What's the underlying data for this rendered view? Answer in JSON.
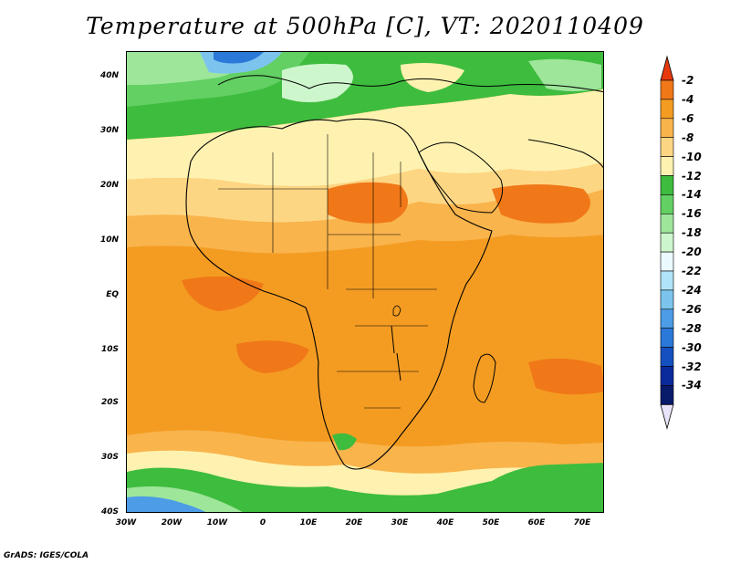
{
  "title": "Temperature at 500hPa [C], VT: 2020110409",
  "credit": "GrADS: IGES/COLA",
  "y_axis_labels": [
    "40N",
    "30N",
    "20N",
    "10N",
    "EQ",
    "10S",
    "20S",
    "30S",
    "40S"
  ],
  "x_axis_labels": [
    "30W",
    "20W",
    "10W",
    "0",
    "10E",
    "20E",
    "30E",
    "40E",
    "50E",
    "60E",
    "70E"
  ],
  "colorbar": {
    "labels": [
      "-2",
      "-4",
      "-6",
      "-8",
      "-10",
      "-12",
      "-14",
      "-16",
      "-18",
      "-20",
      "-22",
      "-24",
      "-26",
      "-28",
      "-30",
      "-32",
      "-34"
    ],
    "colors": [
      "#e8390c",
      "#f07818",
      "#f49c22",
      "#f9b44c",
      "#fdd684",
      "#fff2b0",
      "#3ebc3e",
      "#62d062",
      "#9ee69a",
      "#cdf6cc",
      "#ebfafe",
      "#b0e4f8",
      "#7cc4ee",
      "#4c9ce6",
      "#2a78d8",
      "#1450c0",
      "#0a2a9c",
      "#081a6a",
      "#e9e4fb"
    ]
  },
  "region": {
    "lon_min": -30,
    "lon_max": 75,
    "lat_min": -40,
    "lat_max": 45
  }
}
